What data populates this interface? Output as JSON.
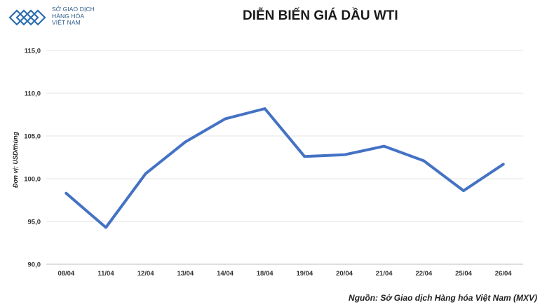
{
  "logo": {
    "lines": [
      "SỞ GIAO DỊCH",
      "HÀNG HÓA",
      "VIỆT NAM"
    ],
    "color": "#2d6fb0"
  },
  "source": "Nguồn: Sở Giao dịch Hàng hóa Việt Nam (MXV)",
  "chart_data": {
    "type": "line",
    "title": "DIỄN BIẾN GIÁ DẦU WTI",
    "xlabel": "",
    "ylabel": "Đơn vị: USD/thùng",
    "categories": [
      "08/04",
      "11/04",
      "12/04",
      "13/04",
      "14/04",
      "18/04",
      "19/04",
      "20/04",
      "21/04",
      "22/04",
      "25/04",
      "26/04"
    ],
    "series": [
      {
        "values": [
          98.3,
          94.3,
          100.6,
          104.3,
          107.0,
          108.2,
          102.6,
          102.8,
          103.8,
          102.1,
          98.6,
          101.7
        ],
        "color": "#4472c4"
      }
    ],
    "ylim": [
      90,
      115
    ],
    "yticks": [
      "90,0",
      "95,0",
      "100,0",
      "105,0",
      "110,0",
      "115,0"
    ],
    "ytick_values": [
      90,
      95,
      100,
      105,
      110,
      115
    ],
    "grid": true
  }
}
